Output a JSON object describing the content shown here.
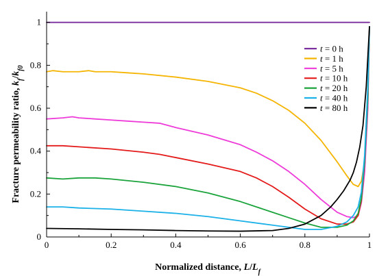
{
  "chart_data": {
    "type": "line",
    "xlabel": {
      "prefix": "Normalized distance, ",
      "var": "L",
      "mid": "/",
      "var2": "L",
      "sub2": "f"
    },
    "ylabel": {
      "prefix": "Fracture permeability ratio, ",
      "var": "k",
      "sub": "f",
      "mid": "/",
      "var2": "k",
      "sub2": "f0"
    },
    "xlim": [
      0,
      1
    ],
    "ylim": [
      0,
      1.05
    ],
    "xticks": [
      0,
      0.2,
      0.4,
      0.6,
      0.8,
      1
    ],
    "yticks": [
      0,
      0.2,
      0.4,
      0.6,
      0.8,
      1
    ],
    "xtick_labels": [
      "0",
      "0.2",
      "0.4",
      "0.6",
      "0.8",
      "1"
    ],
    "ytick_labels": [
      "0",
      "0.2",
      "0.4",
      "0.6",
      "0.8",
      "1"
    ],
    "grid": false,
    "legend_position": "top-right",
    "series": [
      {
        "name": "0 h",
        "color": "#7b2d9e",
        "x": [
          0,
          0.2,
          0.4,
          0.6,
          0.8,
          1.0
        ],
        "y": [
          1.0,
          1.0,
          1.0,
          1.0,
          1.0,
          1.0
        ]
      },
      {
        "name": "1 h",
        "color": "#f5b400",
        "x": [
          0,
          0.02,
          0.05,
          0.1,
          0.13,
          0.15,
          0.2,
          0.25,
          0.3,
          0.4,
          0.5,
          0.6,
          0.65,
          0.7,
          0.75,
          0.8,
          0.85,
          0.9,
          0.93,
          0.95,
          0.965,
          0.975,
          0.985,
          0.99,
          0.995,
          1.0
        ],
        "y": [
          0.77,
          0.775,
          0.77,
          0.77,
          0.775,
          0.77,
          0.77,
          0.765,
          0.76,
          0.745,
          0.725,
          0.695,
          0.67,
          0.635,
          0.59,
          0.53,
          0.45,
          0.35,
          0.285,
          0.245,
          0.235,
          0.26,
          0.35,
          0.5,
          0.7,
          0.98
        ]
      },
      {
        "name": "5 h",
        "color": "#ee3ad9",
        "x": [
          0,
          0.05,
          0.08,
          0.1,
          0.15,
          0.2,
          0.25,
          0.3,
          0.35,
          0.4,
          0.5,
          0.6,
          0.65,
          0.7,
          0.75,
          0.8,
          0.85,
          0.9,
          0.93,
          0.95,
          0.965,
          0.975,
          0.985,
          0.995,
          1.0
        ],
        "y": [
          0.55,
          0.555,
          0.56,
          0.555,
          0.55,
          0.545,
          0.54,
          0.535,
          0.53,
          0.51,
          0.475,
          0.43,
          0.395,
          0.355,
          0.305,
          0.245,
          0.175,
          0.115,
          0.095,
          0.09,
          0.1,
          0.16,
          0.3,
          0.6,
          0.98
        ]
      },
      {
        "name": "10 h",
        "color": "#e41a1a",
        "x": [
          0,
          0.05,
          0.1,
          0.2,
          0.3,
          0.35,
          0.4,
          0.5,
          0.6,
          0.65,
          0.7,
          0.75,
          0.8,
          0.85,
          0.9,
          0.93,
          0.95,
          0.965,
          0.975,
          0.985,
          0.995,
          1.0
        ],
        "y": [
          0.425,
          0.425,
          0.42,
          0.41,
          0.395,
          0.385,
          0.37,
          0.34,
          0.305,
          0.275,
          0.235,
          0.185,
          0.13,
          0.085,
          0.06,
          0.06,
          0.07,
          0.1,
          0.17,
          0.35,
          0.65,
          0.98
        ]
      },
      {
        "name": "20 h",
        "color": "#1aa33a",
        "x": [
          0,
          0.05,
          0.1,
          0.15,
          0.2,
          0.3,
          0.4,
          0.5,
          0.6,
          0.7,
          0.75,
          0.8,
          0.85,
          0.9,
          0.93,
          0.95,
          0.965,
          0.975,
          0.985,
          0.995,
          1.0
        ],
        "y": [
          0.275,
          0.27,
          0.275,
          0.275,
          0.27,
          0.255,
          0.235,
          0.205,
          0.165,
          0.115,
          0.09,
          0.065,
          0.045,
          0.045,
          0.055,
          0.075,
          0.11,
          0.18,
          0.35,
          0.65,
          0.98
        ]
      },
      {
        "name": "40 h",
        "color": "#1ab0e8",
        "x": [
          0,
          0.05,
          0.1,
          0.2,
          0.3,
          0.4,
          0.5,
          0.6,
          0.7,
          0.75,
          0.8,
          0.85,
          0.9,
          0.93,
          0.95,
          0.965,
          0.975,
          0.985,
          0.995,
          1.0
        ],
        "y": [
          0.14,
          0.14,
          0.135,
          0.13,
          0.12,
          0.11,
          0.095,
          0.075,
          0.055,
          0.045,
          0.035,
          0.035,
          0.05,
          0.07,
          0.1,
          0.14,
          0.21,
          0.38,
          0.7,
          0.98
        ]
      },
      {
        "name": "80 h",
        "color": "#000000",
        "x": [
          0,
          0.1,
          0.2,
          0.3,
          0.4,
          0.5,
          0.6,
          0.7,
          0.75,
          0.8,
          0.85,
          0.88,
          0.9,
          0.92,
          0.94,
          0.95,
          0.96,
          0.97,
          0.98,
          0.99,
          1.0
        ],
        "y": [
          0.04,
          0.038,
          0.035,
          0.033,
          0.03,
          0.028,
          0.027,
          0.03,
          0.04,
          0.06,
          0.1,
          0.14,
          0.175,
          0.215,
          0.265,
          0.3,
          0.35,
          0.42,
          0.52,
          0.7,
          0.98
        ]
      }
    ]
  }
}
